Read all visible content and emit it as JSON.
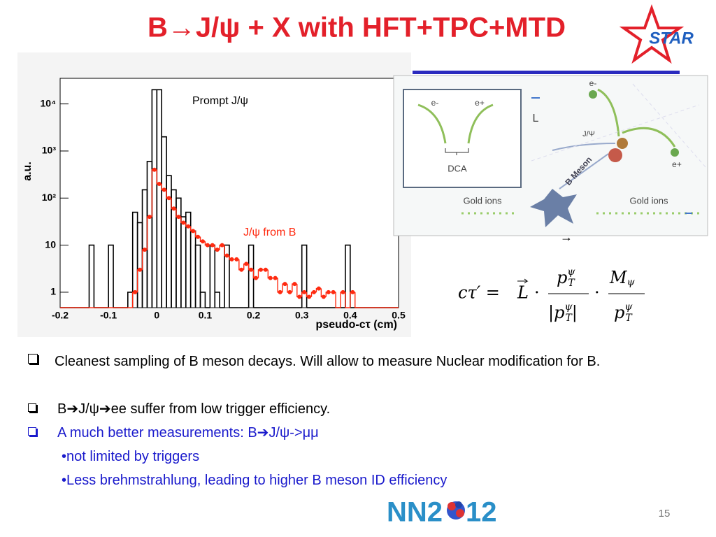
{
  "header": {
    "title": "B→J/ψ + X with HFT+TPC+MTD",
    "logo": "STAR"
  },
  "chart_data": {
    "type": "histogram",
    "xlabel": "pseudo-cτ (cm)",
    "ylabel": "a.u.",
    "bins": [
      -0.2,
      -0.19,
      -0.18,
      -0.17,
      -0.16,
      -0.15,
      -0.14,
      -0.13,
      -0.12,
      -0.11,
      -0.1,
      -0.09,
      -0.08,
      -0.07,
      -0.06,
      -0.05,
      -0.04,
      -0.03,
      -0.02,
      -0.01,
      0,
      0.01,
      0.02,
      0.03,
      0.04,
      0.05,
      0.06,
      0.07,
      0.08,
      0.09,
      0.1,
      0.11,
      0.12,
      0.13,
      0.14,
      0.15,
      0.16,
      0.17,
      0.18,
      0.19,
      0.2,
      0.21,
      0.22,
      0.23,
      0.24,
      0.25,
      0.26,
      0.27,
      0.28,
      0.29,
      0.3,
      0.31,
      0.32,
      0.33,
      0.34,
      0.35,
      0.36,
      0.37,
      0.38,
      0.39,
      0.4,
      0.41,
      0.42,
      0.43,
      0.44,
      0.45,
      0.46,
      0.47,
      0.48,
      0.49,
      0.5
    ],
    "series": [
      {
        "name": "Prompt J/ψ",
        "color": "#000000",
        "values": [
          0,
          0,
          0,
          0,
          0,
          0,
          10,
          0,
          0,
          0,
          10,
          0,
          0,
          0,
          1,
          50,
          30,
          150,
          600,
          20000,
          20000,
          2000,
          300,
          150,
          100,
          40,
          50,
          20,
          10,
          1,
          0,
          10,
          1,
          0,
          10,
          0,
          0,
          0,
          0,
          10,
          0,
          0,
          0,
          0,
          0,
          0,
          0,
          0,
          0,
          0,
          10,
          0,
          0,
          0,
          0,
          0,
          0,
          0,
          0,
          10,
          0,
          0,
          0,
          0,
          0,
          0,
          0,
          0,
          0,
          0
        ]
      },
      {
        "name": "J/ψ from B",
        "color": "#ff2a10",
        "values": [
          0,
          0,
          0,
          0,
          0,
          0,
          0,
          0,
          0,
          0,
          0,
          0,
          0,
          0,
          0,
          1,
          3,
          8,
          40,
          400,
          200,
          150,
          100,
          60,
          40,
          30,
          25,
          20,
          15,
          12,
          10,
          10,
          8,
          10,
          6,
          5,
          5,
          3,
          4,
          3,
          2,
          3,
          3,
          2,
          2,
          1,
          1.5,
          1,
          1.5,
          0.8,
          1,
          0.8,
          1,
          1.2,
          0.8,
          1,
          1,
          0,
          1,
          0,
          1,
          0,
          0,
          0,
          0,
          0,
          0,
          0,
          0,
          0
        ]
      }
    ],
    "xlim": [
      -0.2,
      0.5
    ],
    "xticks": [
      -0.2,
      -0.1,
      0,
      0.1,
      0.2,
      0.3,
      0.4,
      0.5
    ],
    "ylim": [
      0.47,
      35000
    ],
    "log_y": true,
    "yticks": [
      1,
      10,
      {
        "value": 100,
        "label": "10²"
      },
      {
        "value": 1000,
        "label": "10³"
      },
      {
        "value": 10000,
        "label": "10⁴"
      }
    ]
  },
  "diagram": {
    "e_minus_left": "e-",
    "e_plus_left": "e+",
    "dca": "DCA",
    "l": "L",
    "jpsi": "J/Ψ",
    "b_meson": "B Meson",
    "gold_left": "Gold ions",
    "gold_right": "Gold ions",
    "e_minus": "e-",
    "e_plus": "e+",
    "arrow_below": "→"
  },
  "formula": {
    "lhs": "cτ′ = ",
    "vec": "L",
    "dot1": "·",
    "num1": [
      "p",
      "ψ",
      "T"
    ],
    "den1": [
      "|p",
      "ψ",
      "T",
      "|"
    ],
    "dot2": "·",
    "num2": [
      "M",
      "ψ"
    ],
    "den2": [
      "p",
      "ψ",
      "T"
    ]
  },
  "bullets": [
    {
      "text": "Cleanest sampling of B meson decays. Will allow to measure Nuclear modification for B."
    },
    {
      "text": "B➔J/ψ➔ee  suffer from low trigger efficiency."
    },
    {
      "text": "A much better measurements: B➔J/ψ->μμ"
    }
  ],
  "sub_bullets": [
    "•not limited by triggers",
    "•Less brehmstrahlung, leading to higher B meson ID efficiency"
  ],
  "footer": {
    "logo_left": "NN2",
    "logo_right": "12",
    "page": "15"
  }
}
